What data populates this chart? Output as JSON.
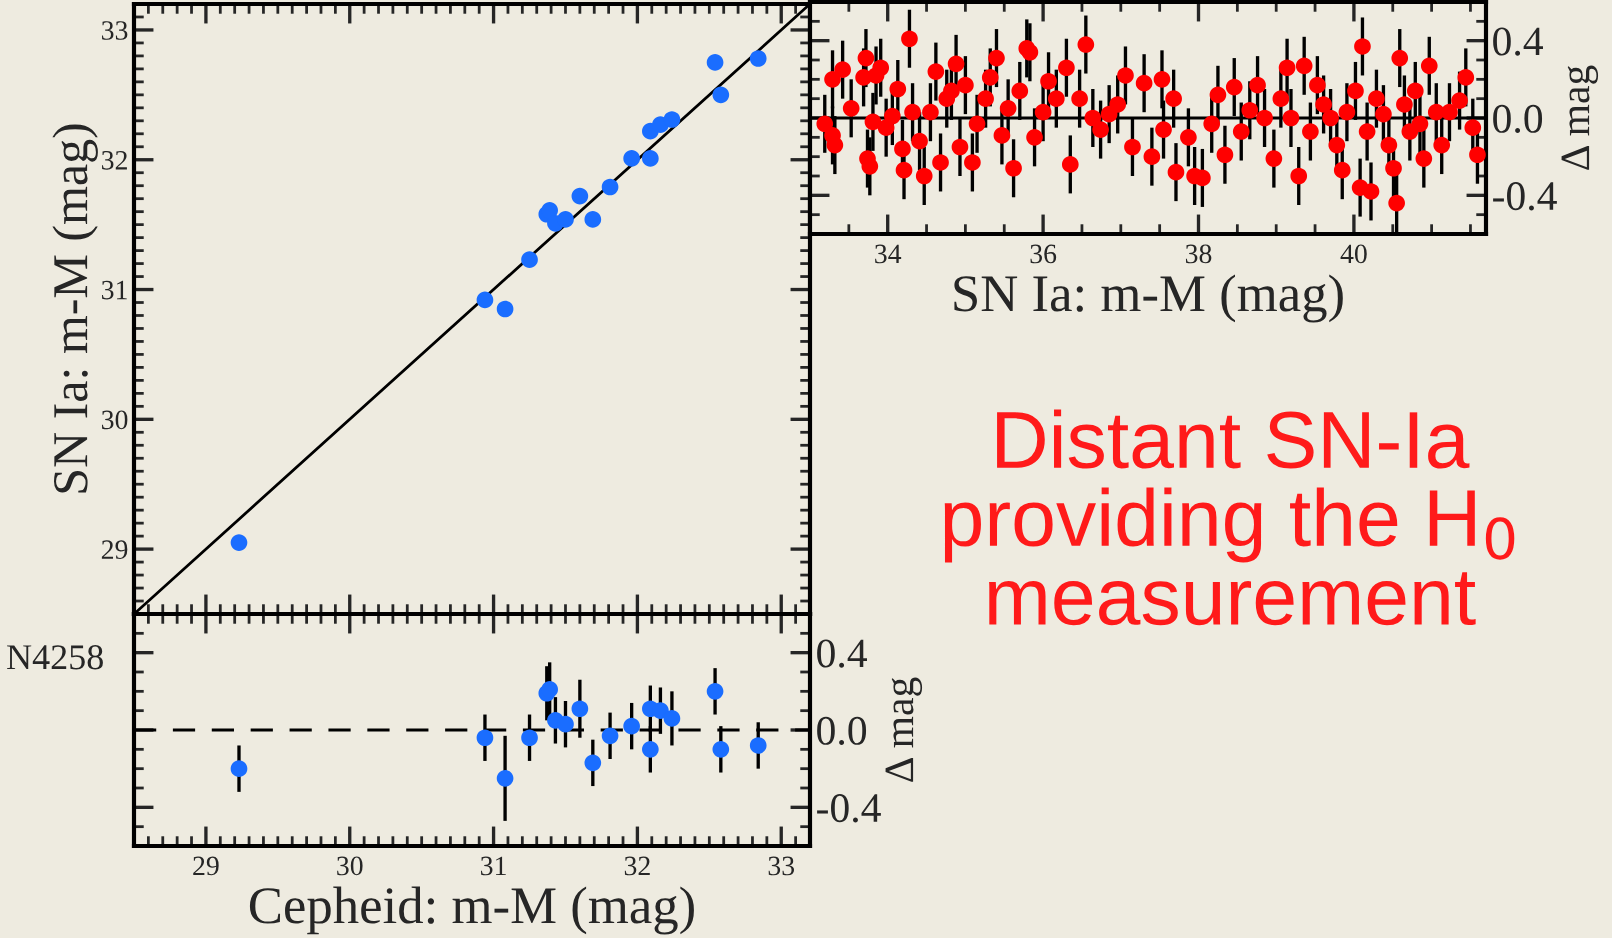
{
  "chart_data": [
    {
      "type": "scatter",
      "ylabel": "SN Ia: m-M (mag)",
      "xlim": [
        28.5,
        33.2
      ],
      "ylim": [
        28.5,
        33.2
      ],
      "xticks": [
        29,
        30,
        31,
        32,
        33
      ],
      "yticks": [
        29,
        30,
        31,
        32,
        33
      ],
      "tick_labels": "y",
      "marker": "circle",
      "series": [
        {
          "type": "scatter",
          "color": "#1a6dff",
          "x": [
            29.23,
            30.94,
            31.08,
            31.25,
            31.37,
            31.39,
            31.43,
            31.5,
            31.6,
            31.69,
            31.81,
            31.96,
            32.09,
            32.09,
            32.16,
            32.24,
            32.54,
            32.58,
            32.84
          ],
          "values": [
            29.05,
            30.92,
            30.85,
            31.23,
            31.58,
            31.61,
            31.51,
            31.54,
            31.72,
            31.54,
            31.79,
            32.01,
            32.22,
            32.01,
            32.27,
            32.31,
            32.75,
            32.5,
            32.78
          ]
        },
        {
          "type": "line",
          "marker": "none",
          "color": "#000000",
          "x": [
            28.5,
            33.2
          ],
          "values": [
            28.5,
            33.2
          ]
        }
      ]
    },
    {
      "type": "scatter",
      "xlabel": "Cepheid: m-M (mag)",
      "ylabel": "Δ mag",
      "xlim": [
        28.5,
        33.2
      ],
      "ylim": [
        -0.6,
        0.6
      ],
      "xticks": [
        29,
        30,
        31,
        32,
        33
      ],
      "yticks": [
        -0.4,
        {
          "value": 0,
          "label": "0.0"
        },
        0.4
      ],
      "marker": "circle",
      "ref_lines": [
        {
          "axis": "y",
          "value": 0,
          "line_style": "dashed",
          "color": "#000000"
        }
      ],
      "series": [
        {
          "type": "scatter",
          "color": "#1a6dff",
          "x": [
            29.23,
            30.94,
            31.08,
            31.25,
            31.37,
            31.39,
            31.43,
            31.5,
            31.6,
            31.69,
            31.81,
            31.96,
            32.09,
            32.09,
            32.16,
            32.24,
            32.54,
            32.58,
            32.84
          ],
          "values": [
            -0.2,
            -0.04,
            -0.25,
            -0.04,
            0.19,
            0.21,
            0.05,
            0.03,
            0.11,
            -0.17,
            -0.03,
            0.02,
            0.11,
            -0.1,
            0.1,
            0.06,
            0.2,
            -0.1,
            -0.08
          ],
          "errors": [
            0.12,
            0.12,
            0.22,
            0.12,
            0.14,
            0.14,
            0.12,
            0.12,
            0.15,
            0.12,
            0.12,
            0.12,
            0.12,
            0.12,
            0.12,
            0.14,
            0.12,
            0.12,
            0.12
          ]
        }
      ]
    },
    {
      "type": "scatter",
      "xlabel": "SN Ia: m-M (mag)",
      "ylabel": "Δ mag",
      "xlim": [
        33.0,
        41.7
      ],
      "ylim": [
        -0.6,
        0.6
      ],
      "xticks": [
        34,
        36,
        38,
        40
      ],
      "yticks": [
        -0.4,
        {
          "value": 0,
          "label": "0.0"
        },
        0.4
      ],
      "marker": "circle",
      "ref_lines": [
        {
          "axis": "y",
          "value": 0,
          "line_style": "solid",
          "color": "#000000"
        }
      ],
      "annotations": [
        "Distant SN-Ia\nproviding the H$_{0}$\nmeasurement"
      ],
      "series": [
        {
          "type": "scatter",
          "color": "#ff0000",
          "x": [
            33.19,
            33.29,
            33.29,
            33.32,
            33.42,
            33.53,
            33.69,
            33.72,
            33.74,
            33.77,
            33.81,
            33.85,
            33.91,
            33.98,
            34.06,
            34.13,
            34.19,
            34.21,
            34.28,
            34.32,
            34.41,
            34.47,
            34.55,
            34.62,
            34.68,
            34.76,
            34.82,
            34.88,
            34.93,
            35.0,
            35.09,
            35.15,
            35.26,
            35.32,
            35.4,
            35.47,
            35.55,
            35.62,
            35.7,
            35.79,
            35.83,
            35.89,
            36.0,
            36.07,
            36.17,
            36.3,
            36.35,
            36.47,
            36.55,
            36.64,
            36.74,
            36.85,
            36.96,
            37.06,
            37.15,
            37.3,
            37.4,
            37.53,
            37.55,
            37.68,
            37.71,
            37.87,
            37.95,
            38.05,
            38.17,
            38.25,
            38.34,
            38.46,
            38.55,
            38.66,
            38.76,
            38.85,
            38.97,
            39.06,
            39.14,
            39.19,
            39.29,
            39.36,
            39.44,
            39.53,
            39.61,
            39.7,
            39.78,
            39.85,
            39.91,
            40.02,
            40.08,
            40.11,
            40.17,
            40.22,
            40.29,
            40.38,
            40.45,
            40.51,
            40.55,
            40.59,
            40.65,
            40.72,
            40.79,
            40.85,
            40.9,
            40.97,
            41.06,
            41.13,
            41.23,
            41.36,
            41.44,
            41.53,
            41.59
          ],
          "values": [
            -0.03,
            -0.09,
            0.2,
            -0.14,
            0.25,
            0.05,
            0.21,
            0.31,
            -0.21,
            -0.25,
            -0.02,
            0.22,
            0.26,
            -0.05,
            0.01,
            0.15,
            -0.16,
            -0.27,
            0.41,
            0.03,
            -0.12,
            -0.3,
            0.03,
            0.24,
            -0.23,
            0.1,
            0.14,
            0.28,
            -0.15,
            0.17,
            -0.23,
            -0.03,
            0.1,
            0.21,
            0.31,
            -0.09,
            0.05,
            -0.26,
            0.14,
            0.36,
            0.34,
            -0.1,
            0.03,
            0.19,
            0.1,
            0.26,
            -0.24,
            0.1,
            0.38,
            0.0,
            -0.06,
            0.02,
            0.07,
            0.22,
            -0.15,
            0.18,
            -0.2,
            0.2,
            -0.06,
            0.1,
            -0.28,
            -0.1,
            -0.3,
            -0.31,
            -0.03,
            0.12,
            -0.19,
            0.16,
            -0.07,
            0.04,
            0.17,
            0.0,
            -0.21,
            0.1,
            0.26,
            0.0,
            -0.3,
            0.27,
            -0.07,
            0.17,
            0.07,
            0.0,
            -0.14,
            -0.27,
            0.03,
            0.14,
            -0.36,
            0.37,
            -0.07,
            -0.38,
            0.1,
            0.02,
            -0.14,
            -0.26,
            -0.44,
            0.31,
            0.07,
            -0.07,
            0.14,
            -0.03,
            -0.21,
            0.27,
            0.03,
            -0.14,
            0.03,
            0.09,
            0.21,
            -0.05,
            -0.19
          ],
          "errors": [
            0.15,
            0.15,
            0.15,
            0.15,
            0.15,
            0.15,
            0.15,
            0.15,
            0.15,
            0.15,
            0.15,
            0.15,
            0.15,
            0.15,
            0.15,
            0.15,
            0.15,
            0.15,
            0.15,
            0.15,
            0.15,
            0.15,
            0.15,
            0.15,
            0.15,
            0.15,
            0.15,
            0.15,
            0.15,
            0.15,
            0.15,
            0.15,
            0.15,
            0.15,
            0.15,
            0.15,
            0.15,
            0.15,
            0.15,
            0.15,
            0.15,
            0.15,
            0.15,
            0.15,
            0.15,
            0.15,
            0.15,
            0.15,
            0.15,
            0.15,
            0.15,
            0.15,
            0.15,
            0.15,
            0.15,
            0.15,
            0.15,
            0.15,
            0.15,
            0.15,
            0.15,
            0.15,
            0.15,
            0.15,
            0.15,
            0.15,
            0.15,
            0.15,
            0.15,
            0.15,
            0.15,
            0.15,
            0.15,
            0.15,
            0.15,
            0.15,
            0.15,
            0.15,
            0.15,
            0.15,
            0.15,
            0.15,
            0.15,
            0.15,
            0.15,
            0.15,
            0.15,
            0.15,
            0.15,
            0.15,
            0.15,
            0.15,
            0.15,
            0.15,
            0.15,
            0.15,
            0.15,
            0.15,
            0.15,
            0.15,
            0.15,
            0.15,
            0.15,
            0.15,
            0.15,
            0.15,
            0.15,
            0.15,
            0.15
          ]
        }
      ]
    },
    {
      "type": "other",
      "annotations": [
        "N4258"
      ]
    }
  ]
}
